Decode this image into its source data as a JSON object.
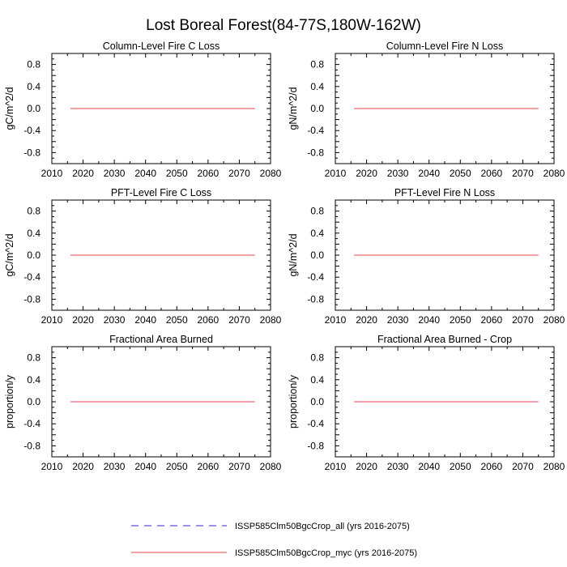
{
  "figure": {
    "title": "Lost Boreal Forest(84-77S,180W-162W)"
  },
  "chart_data": [
    {
      "type": "line",
      "title": "Column-Level Fire C Loss",
      "xlabel": "",
      "ylabel": "gC/m^2/d",
      "xlim": [
        2010,
        2080
      ],
      "ylim": [
        -1,
        1
      ],
      "xticks": [
        2010,
        2020,
        2030,
        2040,
        2050,
        2060,
        2070,
        2080
      ],
      "yticks": [
        "-0.8",
        "-0.4",
        "0.0",
        "0.4",
        "0.8"
      ],
      "series": [
        {
          "name": "ISSP585Clm50BgcCrop_all (yrs 2016-2075)",
          "color": "#2b2bd6",
          "dash": true,
          "x": [
            2016,
            2075
          ],
          "y": [
            0,
            0
          ]
        },
        {
          "name": "ISSP585Clm50BgcCrop_myc (yrs 2016-2075)",
          "color": "#e8404a",
          "dash": false,
          "x": [
            2016,
            2075
          ],
          "y": [
            0,
            0
          ]
        }
      ]
    },
    {
      "type": "line",
      "title": "Column-Level Fire N Loss",
      "xlabel": "",
      "ylabel": "gN/m^2/d",
      "xlim": [
        2010,
        2080
      ],
      "ylim": [
        -1,
        1
      ],
      "xticks": [
        2010,
        2020,
        2030,
        2040,
        2050,
        2060,
        2070,
        2080
      ],
      "yticks": [
        "-0.8",
        "-0.4",
        "0.0",
        "0.4",
        "0.8"
      ],
      "series": [
        {
          "name": "ISSP585Clm50BgcCrop_all (yrs 2016-2075)",
          "color": "#2b2bd6",
          "dash": true,
          "x": [
            2016,
            2075
          ],
          "y": [
            0,
            0
          ]
        },
        {
          "name": "ISSP585Clm50BgcCrop_myc (yrs 2016-2075)",
          "color": "#e8404a",
          "dash": false,
          "x": [
            2016,
            2075
          ],
          "y": [
            0,
            0
          ]
        }
      ]
    },
    {
      "type": "line",
      "title": "PFT-Level Fire C Loss",
      "xlabel": "",
      "ylabel": "gC/m^2/d",
      "xlim": [
        2010,
        2080
      ],
      "ylim": [
        -1,
        1
      ],
      "xticks": [
        2010,
        2020,
        2030,
        2040,
        2050,
        2060,
        2070,
        2080
      ],
      "yticks": [
        "-0.8",
        "-0.4",
        "0.0",
        "0.4",
        "0.8"
      ],
      "series": [
        {
          "name": "ISSP585Clm50BgcCrop_all (yrs 2016-2075)",
          "color": "#2b2bd6",
          "dash": true,
          "x": [
            2016,
            2075
          ],
          "y": [
            0,
            0
          ]
        },
        {
          "name": "ISSP585Clm50BgcCrop_myc (yrs 2016-2075)",
          "color": "#e8404a",
          "dash": false,
          "x": [
            2016,
            2075
          ],
          "y": [
            0,
            0
          ]
        }
      ]
    },
    {
      "type": "line",
      "title": "PFT-Level Fire N Loss",
      "xlabel": "",
      "ylabel": "gN/m^2/d",
      "xlim": [
        2010,
        2080
      ],
      "ylim": [
        -1,
        1
      ],
      "xticks": [
        2010,
        2020,
        2030,
        2040,
        2050,
        2060,
        2070,
        2080
      ],
      "yticks": [
        "-0.8",
        "-0.4",
        "0.0",
        "0.4",
        "0.8"
      ],
      "series": [
        {
          "name": "ISSP585Clm50BgcCrop_all (yrs 2016-2075)",
          "color": "#2b2bd6",
          "dash": true,
          "x": [
            2016,
            2075
          ],
          "y": [
            0,
            0
          ]
        },
        {
          "name": "ISSP585Clm50BgcCrop_myc (yrs 2016-2075)",
          "color": "#e8404a",
          "dash": false,
          "x": [
            2016,
            2075
          ],
          "y": [
            0,
            0
          ]
        }
      ]
    },
    {
      "type": "line",
      "title": "Fractional Area Burned",
      "xlabel": "",
      "ylabel": "proportion/y",
      "xlim": [
        2010,
        2080
      ],
      "ylim": [
        -1,
        1
      ],
      "xticks": [
        2010,
        2020,
        2030,
        2040,
        2050,
        2060,
        2070,
        2080
      ],
      "yticks": [
        "-0.8",
        "-0.4",
        "0.0",
        "0.4",
        "0.8"
      ],
      "series": [
        {
          "name": "ISSP585Clm50BgcCrop_all (yrs 2016-2075)",
          "color": "#2b2bd6",
          "dash": true,
          "x": [
            2016,
            2075
          ],
          "y": [
            0,
            0
          ]
        },
        {
          "name": "ISSP585Clm50BgcCrop_myc (yrs 2016-2075)",
          "color": "#e8404a",
          "dash": false,
          "x": [
            2016,
            2075
          ],
          "y": [
            0,
            0
          ]
        }
      ]
    },
    {
      "type": "line",
      "title": "Fractional Area Burned - Crop",
      "xlabel": "",
      "ylabel": "proportion/y",
      "xlim": [
        2010,
        2080
      ],
      "ylim": [
        -1,
        1
      ],
      "xticks": [
        2010,
        2020,
        2030,
        2040,
        2050,
        2060,
        2070,
        2080
      ],
      "yticks": [
        "-0.8",
        "-0.4",
        "0.0",
        "0.4",
        "0.8"
      ],
      "series": [
        {
          "name": "ISSP585Clm50BgcCrop_all (yrs 2016-2075)",
          "color": "#2b2bd6",
          "dash": true,
          "x": [
            2016,
            2075
          ],
          "y": [
            0,
            0
          ]
        },
        {
          "name": "ISSP585Clm50BgcCrop_myc (yrs 2016-2075)",
          "color": "#e8404a",
          "dash": false,
          "x": [
            2016,
            2075
          ],
          "y": [
            0,
            0
          ]
        }
      ]
    }
  ],
  "legend": {
    "placement": "bottom-center",
    "entries": [
      {
        "label": "ISSP585Clm50BgcCrop_all (yrs 2016-2075)",
        "color": "#2b2bd6",
        "dash": true
      },
      {
        "label": "ISSP585Clm50BgcCrop_myc (yrs 2016-2075)",
        "color": "#e8404a",
        "dash": false
      }
    ]
  }
}
